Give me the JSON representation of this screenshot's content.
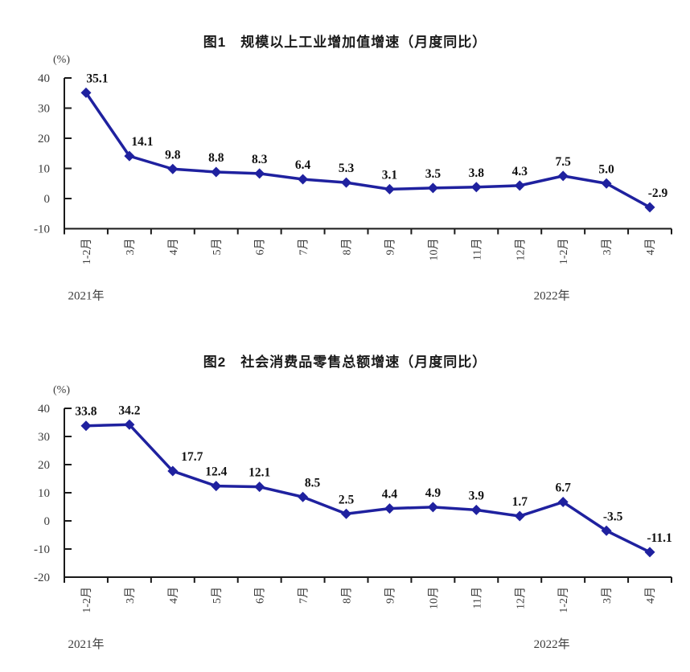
{
  "page": {
    "background_color": "#ffffff"
  },
  "chart_data": [
    {
      "type": "line",
      "title": "图1　规模以上工业增加值增速（月度同比）",
      "unit_label": "(%)",
      "categories": [
        "1-2月",
        "3月",
        "4月",
        "5月",
        "6月",
        "7月",
        "8月",
        "9月",
        "10月",
        "11月",
        "12月",
        "1-2月",
        "3月",
        "4月"
      ],
      "values": [
        35.1,
        14.1,
        9.8,
        8.8,
        8.3,
        6.4,
        5.3,
        3.1,
        3.5,
        3.8,
        4.3,
        7.5,
        5.0,
        -2.9
      ],
      "point_labels": [
        "35.1",
        "14.1",
        "9.8",
        "8.8",
        "8.3",
        "6.4",
        "5.3",
        "3.1",
        "3.5",
        "3.8",
        "4.3",
        "7.5",
        "5.0",
        "-2.9"
      ],
      "label_dx": [
        14,
        16,
        0,
        0,
        0,
        0,
        0,
        0,
        0,
        0,
        0,
        0,
        0,
        10
      ],
      "year_labels": [
        {
          "text": "2021年",
          "category_index": 0,
          "dx": 0
        },
        {
          "text": "2022年",
          "category_index": 11,
          "dx": -14
        }
      ],
      "ylim": [
        -10,
        40
      ],
      "yticks": [
        40,
        30,
        20,
        10,
        0,
        -10
      ],
      "ytick_labels": [
        "40",
        "30",
        "20",
        "10",
        "0",
        "-10"
      ],
      "line_color": "#1f219f",
      "marker": "diamond",
      "grid": false,
      "legend": "none",
      "xlabel": "",
      "ylabel": "(%)"
    },
    {
      "type": "line",
      "title": "图2　社会消费品零售总额增速（月度同比）",
      "unit_label": "(%)",
      "categories": [
        "1-2月",
        "3月",
        "4月",
        "5月",
        "6月",
        "7月",
        "8月",
        "9月",
        "10月",
        "11月",
        "12月",
        "1-2月",
        "3月",
        "4月"
      ],
      "values": [
        33.8,
        34.2,
        17.7,
        12.4,
        12.1,
        8.5,
        2.5,
        4.4,
        4.9,
        3.9,
        1.7,
        6.7,
        -3.5,
        -11.1
      ],
      "point_labels": [
        "33.8",
        "34.2",
        "17.7",
        "12.4",
        "12.1",
        "8.5",
        "2.5",
        "4.4",
        "4.9",
        "3.9",
        "1.7",
        "6.7",
        "-3.5",
        "-11.1"
      ],
      "label_dx": [
        0,
        0,
        24,
        0,
        0,
        12,
        0,
        0,
        0,
        0,
        0,
        0,
        8,
        12
      ],
      "year_labels": [
        {
          "text": "2021年",
          "category_index": 0,
          "dx": 0
        },
        {
          "text": "2022年",
          "category_index": 11,
          "dx": -14
        }
      ],
      "ylim": [
        -20,
        40
      ],
      "yticks": [
        40,
        30,
        20,
        10,
        0,
        -10,
        -20
      ],
      "ytick_labels": [
        "40",
        "30",
        "20",
        "10",
        "0",
        "-10",
        "-20"
      ],
      "line_color": "#1f219f",
      "marker": "diamond",
      "grid": false,
      "legend": "none",
      "xlabel": "",
      "ylabel": "(%)"
    }
  ]
}
